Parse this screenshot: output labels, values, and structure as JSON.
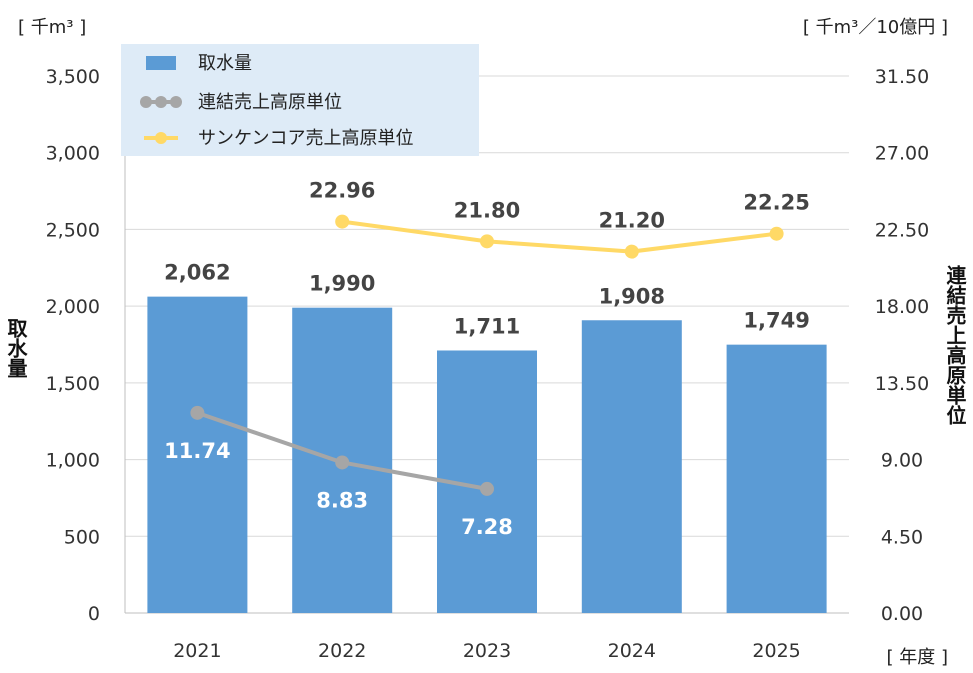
{
  "chart_data": {
    "type": "bar",
    "categories": [
      "2021",
      "2022",
      "2023",
      "2024",
      "2025"
    ],
    "series": [
      {
        "name": "取水量",
        "type": "bar",
        "axis": "left",
        "color": "#5b9bd5",
        "values": [
          2062,
          1990,
          1711,
          1908,
          1749
        ],
        "labels": [
          "2,062",
          "1,990",
          "1,711",
          "1,908",
          "1,749"
        ]
      },
      {
        "name": "連結売上高原単位",
        "type": "line",
        "axis": "right",
        "color": "#a6a6a6",
        "values": [
          11.74,
          8.83,
          7.28,
          null,
          null
        ],
        "labels": [
          "11.74",
          "8.83",
          "7.28",
          "",
          ""
        ]
      },
      {
        "name": "サンケンコア売上高原単位",
        "type": "line",
        "axis": "right",
        "color": "#ffd966",
        "values": [
          null,
          22.96,
          21.8,
          21.2,
          22.25
        ],
        "labels": [
          "",
          "22.96",
          "21.80",
          "21.20",
          "22.25"
        ]
      }
    ],
    "y_left": {
      "label": "取水量",
      "unit": "[ 千m³ ]",
      "ylim": [
        0,
        3500
      ],
      "ticks": [
        "0",
        "500",
        "1,000",
        "1,500",
        "2,000",
        "2,500",
        "3,000",
        "3,500"
      ]
    },
    "y_right": {
      "label": "連結売上高原単位",
      "unit": "[ 千m³／10億円 ]",
      "ylim": [
        0,
        31.5
      ],
      "ticks": [
        "0.00",
        "4.50",
        "9.00",
        "13.50",
        "18.00",
        "22.50",
        "27.00",
        "31.50"
      ]
    },
    "x_unit": "[ 年度 ]",
    "legend_position": "top-left",
    "grid": true
  }
}
